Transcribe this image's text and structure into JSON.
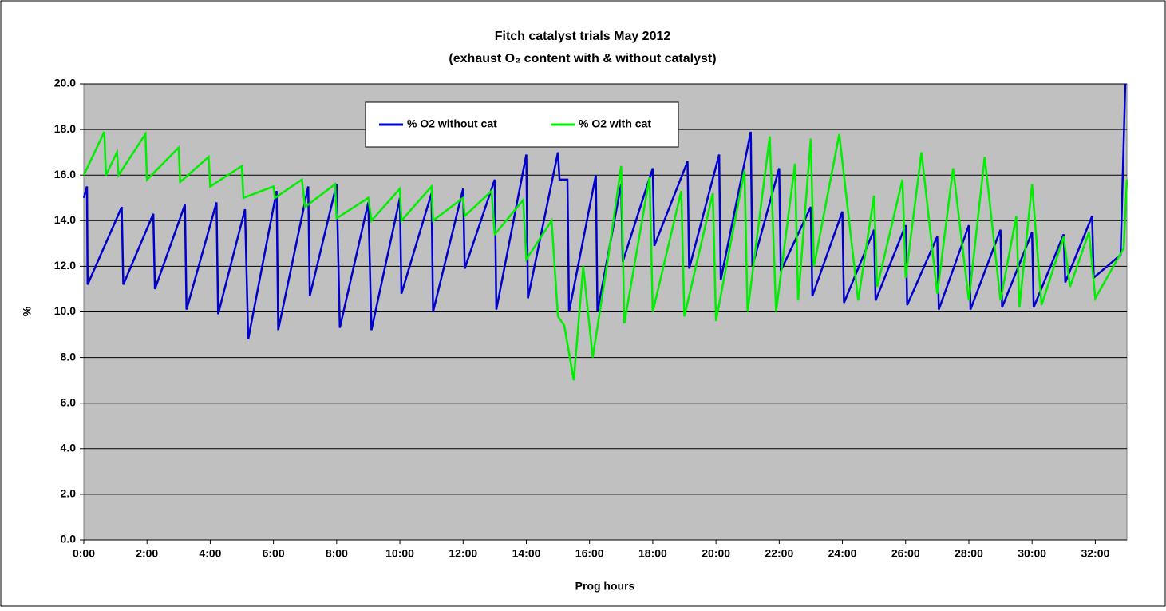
{
  "chart_data": {
    "type": "line",
    "title": "Fitch catalyst trials May 2012",
    "subtitle": "(exhaust O₂ content with & without catalyst)",
    "xlabel": "Prog hours",
    "ylabel": "%",
    "xlim": [
      0,
      33
    ],
    "ylim": [
      0,
      20
    ],
    "grid": true,
    "legend": "top",
    "xticks": [
      {
        "value": 0,
        "label": "0:00"
      },
      {
        "value": 2,
        "label": "2:00"
      },
      {
        "value": 4,
        "label": "4:00"
      },
      {
        "value": 6,
        "label": "6:00"
      },
      {
        "value": 8,
        "label": "8:00"
      },
      {
        "value": 10,
        "label": "10:00"
      },
      {
        "value": 12,
        "label": "12:00"
      },
      {
        "value": 14,
        "label": "14:00"
      },
      {
        "value": 16,
        "label": "16:00"
      },
      {
        "value": 18,
        "label": "18:00"
      },
      {
        "value": 20,
        "label": "20:00"
      },
      {
        "value": 22,
        "label": "22:00"
      },
      {
        "value": 24,
        "label": "24:00"
      },
      {
        "value": 26,
        "label": "26:00"
      },
      {
        "value": 28,
        "label": "28:00"
      },
      {
        "value": 30,
        "label": "30:00"
      },
      {
        "value": 32,
        "label": "32:00"
      }
    ],
    "yticks": [
      {
        "value": 0,
        "label": "0.0"
      },
      {
        "value": 2,
        "label": "2.0"
      },
      {
        "value": 4,
        "label": "4.0"
      },
      {
        "value": 6,
        "label": "6.0"
      },
      {
        "value": 8,
        "label": "8.0"
      },
      {
        "value": 10,
        "label": "10.0"
      },
      {
        "value": 12,
        "label": "12.0"
      },
      {
        "value": 14,
        "label": "14.0"
      },
      {
        "value": 16,
        "label": "16.0"
      },
      {
        "value": 18,
        "label": "18.0"
      },
      {
        "value": 20,
        "label": "20.0"
      }
    ],
    "series": [
      {
        "name": "% O2 without cat",
        "color": "#0000cc",
        "x": [
          0,
          0.1,
          0.12,
          1.2,
          1.25,
          2.2,
          2.25,
          3.2,
          3.25,
          4.2,
          4.25,
          5.1,
          5.2,
          6.1,
          6.15,
          7.1,
          7.15,
          8.0,
          8.1,
          9.0,
          9.1,
          10.0,
          10.05,
          11.0,
          11.05,
          12.0,
          12.05,
          13.0,
          13.05,
          14.0,
          14.05,
          15.0,
          15.05,
          15.3,
          15.35,
          16.2,
          16.25,
          17.0,
          17.05,
          18.0,
          18.05,
          19.1,
          19.15,
          20.1,
          20.15,
          21.1,
          21.15,
          22.0,
          22.05,
          23.0,
          23.05,
          24.0,
          24.05,
          25.0,
          25.05,
          26.0,
          26.05,
          27.0,
          27.05,
          28.0,
          28.05,
          29.0,
          29.05,
          30.0,
          30.05,
          31.0,
          31.05,
          31.9,
          31.95,
          32.8,
          32.95
        ],
        "values": [
          15,
          15.5,
          11.2,
          14.6,
          11.2,
          14.3,
          11,
          14.7,
          10.1,
          14.8,
          9.9,
          14.5,
          8.8,
          15.3,
          9.2,
          15.5,
          10.7,
          15.6,
          9.3,
          14.8,
          9.2,
          15,
          10.8,
          15.2,
          10,
          15.4,
          11.9,
          15.8,
          10.1,
          16.9,
          10.6,
          17,
          15.8,
          15.8,
          10,
          16,
          10,
          15.6,
          12.2,
          16.3,
          12.9,
          16.6,
          11.9,
          16.9,
          11.4,
          17.9,
          12,
          16.3,
          11.8,
          14.6,
          10.7,
          14.4,
          10.4,
          13.6,
          10.5,
          13.8,
          10.3,
          13.3,
          10.1,
          13.8,
          10.1,
          13.6,
          10.2,
          13.5,
          10.2,
          13.4,
          11.3,
          14.2,
          11.5,
          12.5,
          20
        ]
      },
      {
        "name": "% O2 with cat",
        "color": "#00ee00",
        "x": [
          0,
          0.65,
          0.7,
          1.05,
          1.1,
          1.95,
          2.0,
          3.0,
          3.05,
          3.95,
          4.0,
          5.0,
          5.05,
          6.0,
          6.05,
          6.9,
          7.0,
          7.95,
          8.0,
          9.0,
          9.1,
          10.0,
          10.05,
          11.0,
          11.05,
          12.0,
          12.05,
          12.9,
          13.0,
          13.9,
          14.0,
          14.8,
          15.0,
          15.2,
          15.5,
          15.8,
          16.1,
          16.6,
          17.0,
          17.1,
          17.9,
          18.0,
          18.9,
          19.0,
          19.9,
          20.0,
          20.9,
          21.0,
          21.7,
          21.9,
          22.5,
          22.6,
          23.0,
          23.1,
          23.9,
          24.5,
          25.0,
          25.1,
          25.9,
          26.0,
          26.5,
          27.0,
          27.5,
          28.0,
          28.5,
          29.0,
          29.5,
          29.6,
          30.0,
          30.3,
          31.0,
          31.2,
          31.8,
          32.0,
          32.9,
          33.0
        ],
        "values": [
          16,
          17.9,
          16,
          17,
          16,
          17.8,
          15.8,
          17.2,
          15.7,
          16.8,
          15.5,
          16.4,
          15,
          15.5,
          15,
          15.8,
          14.6,
          15.6,
          14.1,
          15,
          14,
          15.4,
          14,
          15.5,
          14,
          15,
          14.2,
          15.3,
          13.4,
          14.9,
          12.3,
          14,
          9.8,
          9.4,
          7,
          12,
          8,
          12.5,
          16.4,
          9.5,
          15.9,
          10,
          15.3,
          9.8,
          15.2,
          9.6,
          16.2,
          10,
          17.7,
          10,
          16.5,
          10.5,
          17.6,
          12,
          17.8,
          10.5,
          15.1,
          11.1,
          15.8,
          11.5,
          17,
          10.8,
          16.3,
          10.5,
          16.8,
          10.5,
          14.2,
          10.2,
          15.6,
          10.3,
          13.3,
          11.1,
          13.5,
          10.6,
          12.8,
          15.8
        ]
      }
    ]
  }
}
